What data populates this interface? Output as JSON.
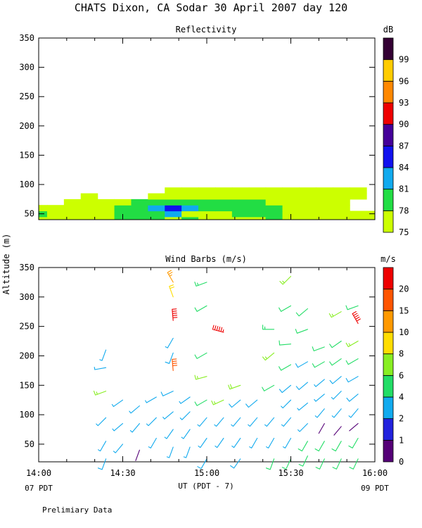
{
  "figure": {
    "title": "CHATS Dixon, CA  Sodar  30 April 2007  day 120",
    "ylabel": "Altitude (m)",
    "xlabel": "UT  (PDT - 7)",
    "x_left_sub": "07 PDT",
    "x_right_sub": "09 PDT",
    "footer": "Prelimiary Data"
  },
  "chart_data": [
    {
      "type": "heatmap",
      "title": "Reflectivity",
      "colorbar_unit": "dB",
      "x_range_min": [
        840,
        960
      ],
      "ylim": [
        40,
        350
      ],
      "y_ticks": [
        50,
        100,
        150,
        200,
        250,
        300,
        350
      ],
      "x_ticks_min": [
        840,
        870,
        900,
        930,
        960
      ],
      "levels": [
        75,
        78,
        81,
        84,
        87,
        90,
        93,
        96,
        99
      ],
      "level_labels": [
        "75",
        "78",
        "81",
        "84",
        "87",
        "90",
        "93",
        "96",
        "99"
      ],
      "level_colors": [
        "#ccff00",
        "#22dd44",
        "#11aaee",
        "#1111ee",
        "#440099",
        "#ee0000",
        "#ff8800",
        "#ffcc00",
        "#330033"
      ],
      "x_min": [
        840,
        846,
        852,
        858,
        864,
        870,
        876,
        882,
        888,
        894,
        900,
        906,
        912,
        918,
        924,
        930,
        936,
        942,
        948,
        954,
        960
      ],
      "y": [
        40,
        50,
        60,
        70,
        80,
        90,
        100,
        110,
        120,
        130,
        140,
        150,
        160,
        170,
        180,
        190,
        200,
        210,
        220,
        230,
        240,
        250,
        260,
        270,
        280,
        290,
        300,
        310,
        320,
        330,
        340,
        350
      ],
      "z_rows": [
        "bbbbbcccbcbbbbcbbbbbb",
        "cbbbbcccdbbbcccbbbbbb",
        "bbbbbccdedcccccbbbbaa",
        "aabbbbccccccccbbbbbaa",
        "aaabaaabbbbbbbbbbbbba",
        "aaaaaaaabbbbbbbbbbbba",
        "aaaaaaaaaaaaaaaaaaaaa",
        "aaaaaaaaaaaaaaaaaaaaa",
        "aaaaaaaaaaaaaaaaaaaaa",
        "aaaaaaaaaaaaaaaaaaaaa",
        "aaaaaaaaaaaaaaaaaaaaa",
        "aaaaaaaaaaaaaaaaaaaaa",
        "aaaaaaaaaaaaaaaaaaaaa",
        "aaaaaaaaaaaaaaaaaaaaa",
        "aaaaaaaaaaaaaaaaaaaaa",
        "aaaaaaaaaaaaaaaaaaaaa",
        "aaaaaaaaaaaaaaaaaaaaa",
        "aaaaaaaaaaaaaaaaaaaaa",
        "aaaaaaaaaaaaaaaaaaaaa",
        "aaaaaaaaaaaaaaaaaaaaa",
        "aaaaaaaaaaaaaaaaaaaaa",
        "aaaaaaaaaaaaaaaaaaaaa",
        "aaaaaaaaaaaaaaaaaaaaa",
        "aaaaaaaaaaaaaaaaaaaaa",
        "aaaaaaaaaaaaaaaaaaaaa",
        "aaaaaaaaaaaaaaaaaaaaa",
        "aaaaaaaaaaaaaaaaaaaaa",
        "aaaaaaaaaaaaaaaaaaaaa",
        "aaaaaaaaaaaaaaaaaaaaa",
        "aaaaaaaaaaaaaaaaaaaaa",
        "aaaaaaaaaaaaaaaaaaaaa",
        "aaaaaaaaaaaaaaaaaaaaa"
      ]
    },
    {
      "type": "scatter",
      "title": "Wind Barbs (m/s)",
      "colorbar_unit": "m/s",
      "x_range_min": [
        840,
        960
      ],
      "ylim": [
        20,
        350
      ],
      "y_ticks": [
        50,
        100,
        150,
        200,
        250,
        300,
        350
      ],
      "x_ticks_min": [
        840,
        870,
        900,
        930,
        960
      ],
      "x_tick_labels": [
        "14:00",
        "14:30",
        "15:00",
        "15:30",
        "16:00"
      ],
      "levels": [
        0,
        1,
        2,
        4,
        6,
        8,
        10,
        15,
        20
      ],
      "level_labels": [
        "0",
        "1",
        "2",
        "4",
        "6",
        "8",
        "10",
        "15",
        "20"
      ],
      "level_colors": [
        "#550077",
        "#2222dd",
        "#11aaee",
        "#22dd66",
        "#88ee22",
        "#ffdd00",
        "#ff9900",
        "#ff5500",
        "#ee0000"
      ],
      "barbs": [
        [
          864,
          25,
          3.0,
          200
        ],
        [
          864,
          55,
          2.5,
          210
        ],
        [
          864,
          95,
          2.2,
          225
        ],
        [
          864,
          140,
          6.5,
          250
        ],
        [
          864,
          180,
          2.0,
          260
        ],
        [
          864,
          210,
          2.5,
          200
        ],
        [
          870,
          50,
          2.0,
          220
        ],
        [
          870,
          85,
          2.5,
          230
        ],
        [
          870,
          125,
          2.0,
          235
        ],
        [
          876,
          40,
          0.8,
          200
        ],
        [
          876,
          85,
          2.5,
          220
        ],
        [
          876,
          115,
          2.5,
          230
        ],
        [
          882,
          60,
          2.5,
          210
        ],
        [
          882,
          95,
          2.5,
          225
        ],
        [
          882,
          130,
          2.5,
          240
        ],
        [
          888,
          45,
          2.5,
          200
        ],
        [
          888,
          75,
          2.5,
          215
        ],
        [
          888,
          105,
          2.5,
          230
        ],
        [
          888,
          140,
          3.0,
          245
        ],
        [
          888,
          175,
          15.0,
          355
        ],
        [
          888,
          205,
          3.0,
          200
        ],
        [
          888,
          230,
          2.5,
          210
        ],
        [
          888,
          260,
          20.0,
          355
        ],
        [
          888,
          300,
          8.0,
          340
        ],
        [
          888,
          325,
          10.0,
          330
        ],
        [
          894,
          45,
          2.5,
          200
        ],
        [
          894,
          75,
          2.5,
          215
        ],
        [
          894,
          105,
          2.5,
          225
        ],
        [
          894,
          130,
          2.5,
          235
        ],
        [
          900,
          25,
          3.0,
          210
        ],
        [
          900,
          60,
          2.5,
          215
        ],
        [
          900,
          95,
          2.5,
          220
        ],
        [
          900,
          125,
          4.0,
          240
        ],
        [
          900,
          165,
          6.0,
          255
        ],
        [
          900,
          205,
          5.0,
          240
        ],
        [
          900,
          285,
          4.0,
          240
        ],
        [
          900,
          325,
          5.5,
          250
        ],
        [
          906,
          60,
          2.5,
          215
        ],
        [
          906,
          95,
          2.5,
          220
        ],
        [
          906,
          125,
          6.5,
          245
        ],
        [
          906,
          240,
          22.0,
          285
        ],
        [
          912,
          25,
          3.0,
          215
        ],
        [
          912,
          60,
          2.5,
          215
        ],
        [
          912,
          95,
          2.5,
          220
        ],
        [
          912,
          125,
          3.0,
          230
        ],
        [
          912,
          150,
          7.0,
          250
        ],
        [
          918,
          60,
          2.5,
          210
        ],
        [
          918,
          95,
          2.5,
          220
        ],
        [
          918,
          125,
          3.0,
          230
        ],
        [
          924,
          25,
          4.0,
          200
        ],
        [
          924,
          60,
          2.5,
          210
        ],
        [
          924,
          95,
          2.5,
          220
        ],
        [
          924,
          150,
          4.0,
          240
        ],
        [
          924,
          205,
          6.0,
          230
        ],
        [
          924,
          245,
          5.5,
          270
        ],
        [
          930,
          25,
          4.0,
          205
        ],
        [
          930,
          60,
          2.5,
          210
        ],
        [
          930,
          95,
          2.5,
          220
        ],
        [
          930,
          125,
          2.5,
          225
        ],
        [
          930,
          150,
          3.0,
          230
        ],
        [
          930,
          185,
          4.0,
          240
        ],
        [
          930,
          220,
          4.5,
          265
        ],
        [
          930,
          285,
          4.0,
          240
        ],
        [
          930,
          335,
          6.0,
          225
        ],
        [
          936,
          30,
          4.0,
          205
        ],
        [
          936,
          55,
          4.0,
          210
        ],
        [
          936,
          85,
          2.5,
          225
        ],
        [
          936,
          120,
          2.5,
          230
        ],
        [
          936,
          155,
          3.0,
          230
        ],
        [
          936,
          190,
          3.5,
          240
        ],
        [
          936,
          245,
          4.0,
          250
        ],
        [
          936,
          280,
          4.0,
          230
        ],
        [
          942,
          25,
          4.0,
          205
        ],
        [
          942,
          55,
          4.0,
          210
        ],
        [
          942,
          85,
          0.8,
          210
        ],
        [
          942,
          110,
          2.5,
          220
        ],
        [
          942,
          135,
          2.5,
          230
        ],
        [
          942,
          160,
          2.5,
          230
        ],
        [
          942,
          190,
          4.0,
          240
        ],
        [
          942,
          215,
          4.5,
          250
        ],
        [
          948,
          25,
          4.0,
          205
        ],
        [
          948,
          55,
          4.0,
          210
        ],
        [
          948,
          80,
          0.8,
          220
        ],
        [
          948,
          110,
          2.5,
          220
        ],
        [
          948,
          140,
          2.5,
          225
        ],
        [
          948,
          165,
          3.0,
          230
        ],
        [
          948,
          195,
          4.5,
          235
        ],
        [
          948,
          225,
          5.0,
          235
        ],
        [
          948,
          275,
          6.0,
          240
        ],
        [
          954,
          25,
          4.0,
          205
        ],
        [
          954,
          60,
          4.0,
          210
        ],
        [
          954,
          85,
          0.8,
          230
        ],
        [
          954,
          110,
          2.5,
          220
        ],
        [
          954,
          135,
          3.0,
          230
        ],
        [
          954,
          165,
          3.5,
          240
        ],
        [
          954,
          195,
          5.0,
          240
        ],
        [
          954,
          225,
          6.0,
          240
        ],
        [
          954,
          255,
          20.0,
          330
        ],
        [
          954,
          285,
          5.0,
          250
        ]
      ]
    }
  ]
}
